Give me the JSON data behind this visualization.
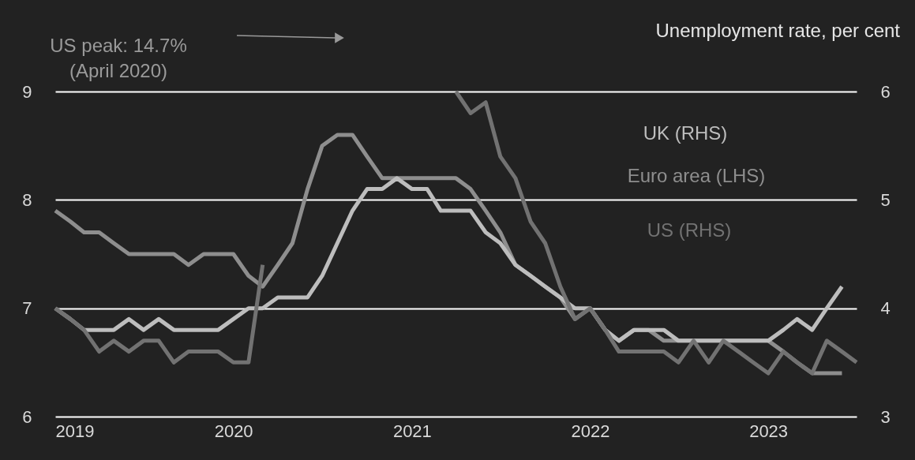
{
  "chart_data": {
    "type": "line",
    "title": "Unemployment rate, per cent",
    "x": [
      "2019-01",
      "2019-02",
      "2019-03",
      "2019-04",
      "2019-05",
      "2019-06",
      "2019-07",
      "2019-08",
      "2019-09",
      "2019-10",
      "2019-11",
      "2019-12",
      "2020-01",
      "2020-02",
      "2020-03",
      "2020-04",
      "2020-05",
      "2020-06",
      "2020-07",
      "2020-08",
      "2020-09",
      "2020-10",
      "2020-11",
      "2020-12",
      "2021-01",
      "2021-02",
      "2021-03",
      "2021-04",
      "2021-05",
      "2021-06",
      "2021-07",
      "2021-08",
      "2021-09",
      "2021-10",
      "2021-11",
      "2021-12",
      "2022-01",
      "2022-02",
      "2022-03",
      "2022-04",
      "2022-05",
      "2022-06",
      "2022-07",
      "2022-08",
      "2022-09",
      "2022-10",
      "2022-11",
      "2022-12",
      "2023-01",
      "2023-02",
      "2023-03",
      "2023-04",
      "2023-05",
      "2023-06",
      "2023-07"
    ],
    "series": [
      {
        "name": "Euro area (LHS)",
        "color": "#8e8e8e",
        "axis": "y",
        "values": [
          7.9,
          7.8,
          7.7,
          7.7,
          7.6,
          7.5,
          7.5,
          7.5,
          7.5,
          7.4,
          7.5,
          7.5,
          7.5,
          7.3,
          7.2,
          7.4,
          7.6,
          8.1,
          8.5,
          8.6,
          8.6,
          8.4,
          8.2,
          8.2,
          8.2,
          8.2,
          8.2,
          8.2,
          8.1,
          7.9,
          7.7,
          7.4,
          7.3,
          7.2,
          7.1,
          6.9,
          7.0,
          6.8,
          6.7,
          6.8,
          6.8,
          6.7,
          6.7,
          6.7,
          6.7,
          6.7,
          6.7,
          6.7,
          6.7,
          6.6,
          6.5,
          6.4,
          6.4,
          6.4,
          null
        ]
      },
      {
        "name": "UK (RHS)",
        "color": "#bdbdbd",
        "axis": "y2",
        "values": [
          4.0,
          3.9,
          3.8,
          3.8,
          3.8,
          3.9,
          3.8,
          3.9,
          3.8,
          3.8,
          3.8,
          3.8,
          3.9,
          4.0,
          4.0,
          4.1,
          4.1,
          4.1,
          4.3,
          4.6,
          4.9,
          5.1,
          5.1,
          5.2,
          5.1,
          5.1,
          4.9,
          4.9,
          4.9,
          4.7,
          4.6,
          4.4,
          4.3,
          4.2,
          4.1,
          4.0,
          4.0,
          3.8,
          3.7,
          3.8,
          3.8,
          3.8,
          3.7,
          3.7,
          3.7,
          3.7,
          3.7,
          3.7,
          3.7,
          3.8,
          3.9,
          3.8,
          4.0,
          4.2,
          null
        ]
      },
      {
        "name": "US (RHS)",
        "color": "#727272",
        "axis": "y2",
        "values": [
          4.0,
          3.9,
          3.8,
          3.6,
          3.7,
          3.6,
          3.7,
          3.7,
          3.5,
          3.6,
          3.6,
          3.6,
          3.5,
          3.5,
          4.4,
          null,
          null,
          null,
          null,
          null,
          null,
          null,
          null,
          null,
          null,
          null,
          null,
          6.0,
          5.8,
          5.9,
          5.4,
          5.2,
          4.8,
          4.6,
          4.2,
          3.9,
          4.0,
          3.8,
          3.6,
          3.6,
          3.6,
          3.6,
          3.5,
          3.7,
          3.5,
          3.7,
          3.6,
          3.5,
          3.4,
          3.6,
          3.5,
          3.4,
          3.7,
          3.6,
          3.5
        ]
      }
    ],
    "xlim": [
      "2019-01",
      "2023-07"
    ],
    "xticks": [
      "2019",
      "2020",
      "2021",
      "2022",
      "2023"
    ],
    "ylim": [
      6,
      9
    ],
    "yticks": [
      6,
      7,
      8,
      9
    ],
    "y2lim": [
      3,
      6
    ],
    "y2ticks": [
      3,
      4,
      5,
      6
    ],
    "grid": "y",
    "annotations": [
      "US peak: 14.7%\n(April 2020)"
    ]
  }
}
